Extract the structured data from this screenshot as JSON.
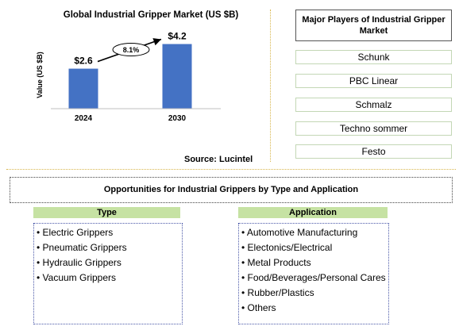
{
  "chart_data": {
    "type": "bar",
    "title": "Global Industrial Gripper Market (US $B)",
    "ylabel": "Value (US $B)",
    "categories": [
      "2024",
      "2030"
    ],
    "values": [
      2.6,
      4.2
    ],
    "value_labels": [
      "$2.6",
      "$4.2"
    ],
    "cagr_label": "8.1%",
    "bar_color": "#4472c4",
    "ylim": [
      0,
      5
    ]
  },
  "source": "Source: Lucintel",
  "players": {
    "title": "Major Players of Industrial Gripper Market",
    "items": [
      "Schunk",
      "PBC Linear",
      "Schmalz",
      "Techno sommer",
      "Festo"
    ]
  },
  "opportunities_title": "Opportunities for Industrial Grippers by Type and Application",
  "type": {
    "header": "Type",
    "items": [
      "Electric Grippers",
      "Pneumatic Grippers",
      "Hydraulic Grippers",
      "Vacuum Grippers"
    ]
  },
  "application": {
    "header": "Application",
    "items": [
      "Automotive Manufacturing",
      "Electonics/Electrical",
      "Metal Products",
      "Food/Beverages/Personal Cares",
      "Rubber/Plastics",
      "Others"
    ]
  },
  "colors": {
    "divider": "#d8b64c",
    "header_green": "#c6e2a3",
    "list_border": "#4a58a8"
  }
}
